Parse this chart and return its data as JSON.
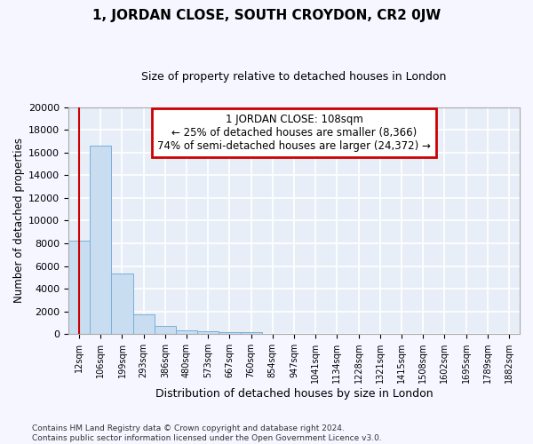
{
  "title": "1, JORDAN CLOSE, SOUTH CROYDON, CR2 0JW",
  "subtitle": "Size of property relative to detached houses in London",
  "xlabel": "Distribution of detached houses by size in London",
  "ylabel": "Number of detached properties",
  "bar_color": "#c8ddf0",
  "bar_edge_color": "#7ab0d8",
  "background_color": "#e8eef8",
  "grid_color": "#ffffff",
  "fig_facecolor": "#f5f6ff",
  "categories": [
    "12sqm",
    "106sqm",
    "199sqm",
    "293sqm",
    "386sqm",
    "480sqm",
    "573sqm",
    "667sqm",
    "760sqm",
    "854sqm",
    "947sqm",
    "1041sqm",
    "1134sqm",
    "1228sqm",
    "1321sqm",
    "1415sqm",
    "1508sqm",
    "1602sqm",
    "1695sqm",
    "1789sqm",
    "1882sqm"
  ],
  "values": [
    8200,
    16600,
    5300,
    1750,
    700,
    350,
    275,
    200,
    175,
    0,
    0,
    0,
    0,
    0,
    0,
    0,
    0,
    0,
    0,
    0,
    0
  ],
  "ylim": [
    0,
    20000
  ],
  "yticks": [
    0,
    2000,
    4000,
    6000,
    8000,
    10000,
    12000,
    14000,
    16000,
    18000,
    20000
  ],
  "property_line_x": 0.5,
  "annotation_text": "1 JORDAN CLOSE: 108sqm\n← 25% of detached houses are smaller (8,366)\n74% of semi-detached houses are larger (24,372) →",
  "annotation_box_color": "#ffffff",
  "annotation_box_edge": "#cc0000",
  "property_line_color": "#cc0000",
  "footnote_line1": "Contains HM Land Registry data © Crown copyright and database right 2024.",
  "footnote_line2": "Contains public sector information licensed under the Open Government Licence v3.0."
}
